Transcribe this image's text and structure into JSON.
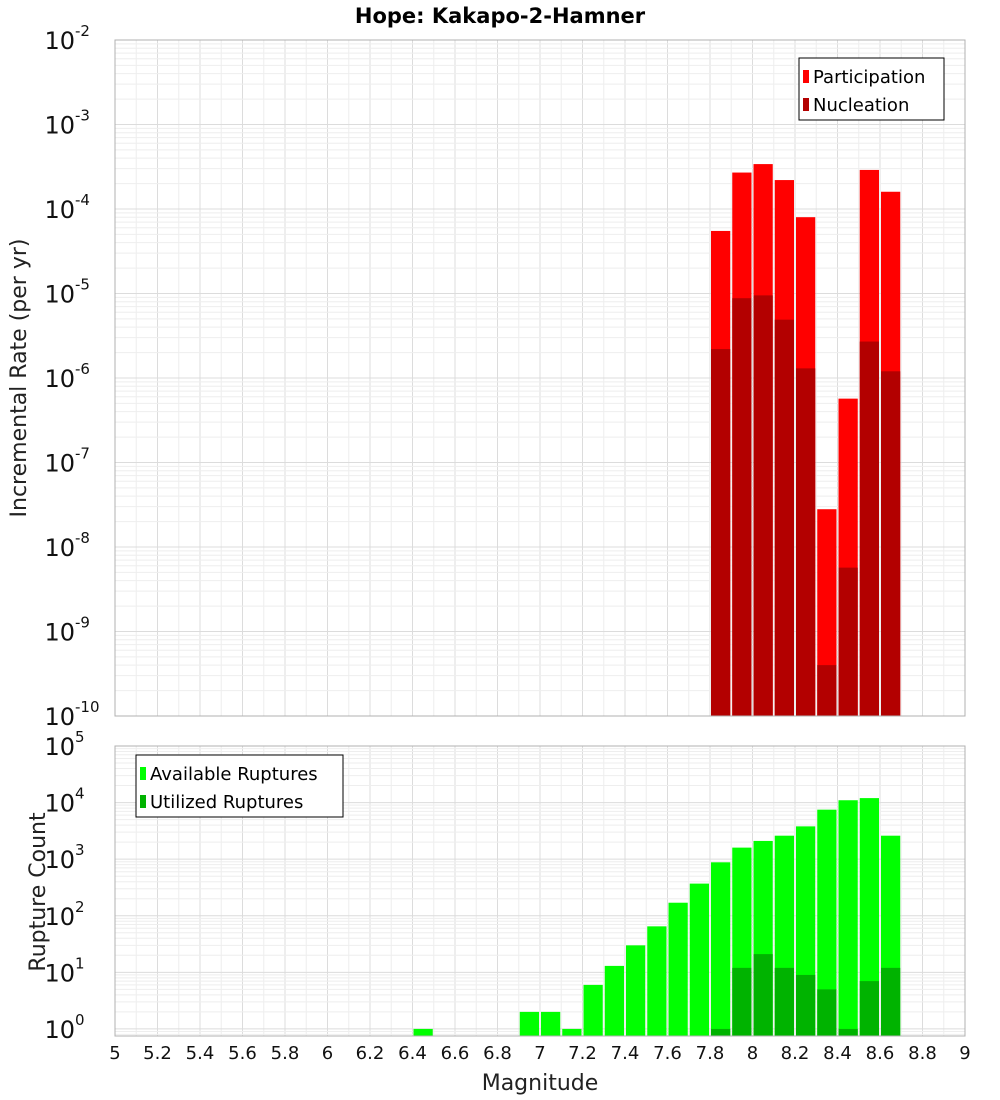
{
  "chart_data": [
    {
      "type": "bar",
      "title": "Hope: Kakapo-2-Hamner",
      "xlabel": "",
      "ylabel": "Incremental Rate (per yr)",
      "yscale": "log",
      "xlim": [
        5,
        9
      ],
      "ylim": [
        1e-10,
        0.01
      ],
      "y_exponents": [
        -10,
        -9,
        -8,
        -7,
        -6,
        -5,
        -4,
        -3,
        -2
      ],
      "bar_width": 0.1,
      "legend_position": "top-right",
      "grid": true,
      "series": [
        {
          "name": "Participation",
          "color": "#ff0000",
          "x": [
            7.85,
            7.95,
            8.05,
            8.15,
            8.25,
            8.35,
            8.45,
            8.55,
            8.65
          ],
          "values": [
            5.5e-05,
            0.00027,
            0.00034,
            0.00022,
            8e-05,
            2.8e-08,
            5.7e-07,
            0.00029,
            0.00016
          ]
        },
        {
          "name": "Nucleation",
          "color": "#b30000",
          "x": [
            7.85,
            7.95,
            8.05,
            8.15,
            8.25,
            8.35,
            8.45,
            8.55,
            8.65
          ],
          "values": [
            2.2e-06,
            8.8e-06,
            9.5e-06,
            4.9e-06,
            1.3e-06,
            4e-10,
            5.7e-09,
            2.7e-06,
            1.2e-06
          ]
        }
      ]
    },
    {
      "type": "bar",
      "title": "",
      "xlabel": "Magnitude",
      "ylabel": "Rupture Count",
      "yscale": "log",
      "xlim": [
        5,
        9
      ],
      "ylim": [
        0.75,
        100000
      ],
      "y_exponents": [
        0,
        1,
        2,
        3,
        4,
        5
      ],
      "x_ticks": [
        "5",
        "5.2",
        "5.4",
        "5.6",
        "5.8",
        "6",
        "6.2",
        "6.4",
        "6.6",
        "6.8",
        "7",
        "7.2",
        "7.4",
        "7.6",
        "7.8",
        "8",
        "8.2",
        "8.4",
        "8.6",
        "8.8",
        "9"
      ],
      "bar_width": 0.1,
      "legend_position": "top-left",
      "grid": true,
      "series": [
        {
          "name": "Available Ruptures",
          "color": "#00ff00",
          "x": [
            6.45,
            6.95,
            7.05,
            7.15,
            7.25,
            7.35,
            7.45,
            7.55,
            7.65,
            7.75,
            7.85,
            7.95,
            8.05,
            8.15,
            8.25,
            8.35,
            8.45,
            8.55,
            8.65
          ],
          "values": [
            1,
            2,
            2,
            1,
            6,
            13,
            30,
            65,
            170,
            370,
            880,
            1600,
            2100,
            2600,
            3800,
            7500,
            11000,
            12000,
            2600
          ]
        },
        {
          "name": "Utilized Ruptures",
          "color": "#00b300",
          "x": [
            7.85,
            7.95,
            8.05,
            8.15,
            8.25,
            8.35,
            8.45,
            8.55,
            8.65
          ],
          "values": [
            1,
            12,
            21,
            12,
            9,
            5,
            1,
            7,
            12
          ]
        }
      ]
    }
  ]
}
